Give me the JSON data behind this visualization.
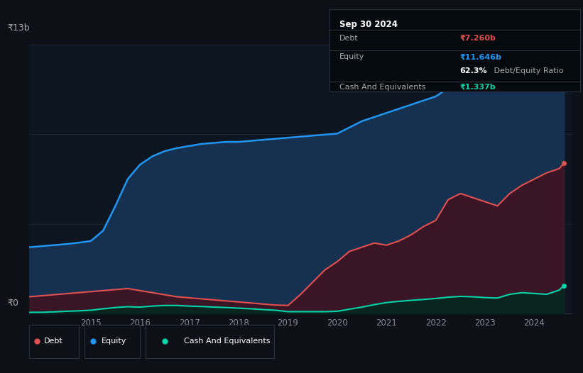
{
  "bg_color": "#0d1117",
  "plot_bg_color": "#0d1520",
  "title": "Sep 30 2024",
  "tooltip": {
    "date": "Sep 30 2024",
    "debt_label": "Debt",
    "debt_value": "₹7.260b",
    "equity_label": "Equity",
    "equity_value": "₹11.646b",
    "ratio_pct": "62.3%",
    "ratio_label": " Debt/Equity Ratio",
    "cash_label": "Cash And Equivalents",
    "cash_value": "₹1.337b"
  },
  "y_label_top": "₹13b",
  "y_label_bottom": "₹0",
  "x_ticks": [
    2015,
    2016,
    2017,
    2018,
    2019,
    2020,
    2021,
    2022,
    2023,
    2024
  ],
  "equity_color": "#2196f3",
  "debt_color": "#e05050",
  "cash_color": "#00d4aa",
  "equity_fill": "#163050",
  "debt_fill": "#3a1525",
  "cash_fill": "#0a2520",
  "years": [
    2013.75,
    2014.0,
    2014.25,
    2014.5,
    2014.75,
    2015.0,
    2015.25,
    2015.5,
    2015.75,
    2016.0,
    2016.25,
    2016.5,
    2016.75,
    2017.0,
    2017.25,
    2017.5,
    2017.75,
    2018.0,
    2018.25,
    2018.5,
    2018.75,
    2019.0,
    2019.25,
    2019.5,
    2019.75,
    2020.0,
    2020.25,
    2020.5,
    2020.75,
    2021.0,
    2021.25,
    2021.5,
    2021.75,
    2022.0,
    2022.25,
    2022.5,
    2022.75,
    2023.0,
    2023.25,
    2023.5,
    2023.75,
    2024.0,
    2024.25,
    2024.5,
    2024.6
  ],
  "equity": [
    3.2,
    3.25,
    3.3,
    3.35,
    3.42,
    3.5,
    4.0,
    5.2,
    6.5,
    7.2,
    7.6,
    7.85,
    8.0,
    8.1,
    8.2,
    8.25,
    8.3,
    8.3,
    8.35,
    8.4,
    8.45,
    8.5,
    8.55,
    8.6,
    8.65,
    8.7,
    9.0,
    9.3,
    9.5,
    9.7,
    9.9,
    10.1,
    10.3,
    10.5,
    10.9,
    11.1,
    11.2,
    11.0,
    10.8,
    11.0,
    11.2,
    11.3,
    11.5,
    11.7,
    11.646
  ],
  "debt": [
    0.8,
    0.85,
    0.9,
    0.95,
    1.0,
    1.05,
    1.1,
    1.15,
    1.2,
    1.1,
    1.0,
    0.9,
    0.8,
    0.75,
    0.7,
    0.65,
    0.6,
    0.55,
    0.5,
    0.45,
    0.4,
    0.38,
    0.9,
    1.5,
    2.1,
    2.5,
    3.0,
    3.2,
    3.4,
    3.3,
    3.5,
    3.8,
    4.2,
    4.5,
    5.5,
    5.8,
    5.6,
    5.4,
    5.2,
    5.8,
    6.2,
    6.5,
    6.8,
    7.0,
    7.26
  ],
  "cash": [
    0.05,
    0.05,
    0.07,
    0.1,
    0.12,
    0.15,
    0.22,
    0.28,
    0.32,
    0.3,
    0.35,
    0.38,
    0.38,
    0.35,
    0.33,
    0.3,
    0.28,
    0.25,
    0.22,
    0.18,
    0.15,
    0.08,
    0.08,
    0.08,
    0.08,
    0.1,
    0.2,
    0.3,
    0.42,
    0.52,
    0.58,
    0.63,
    0.67,
    0.72,
    0.78,
    0.82,
    0.8,
    0.76,
    0.74,
    0.92,
    1.0,
    0.96,
    0.92,
    1.12,
    1.337
  ],
  "ylim": [
    0,
    13
  ],
  "xlim": [
    2013.75,
    2024.75
  ],
  "grid_lines": [
    0,
    4.333,
    8.667,
    13
  ],
  "figsize": [
    8.21,
    5.26
  ],
  "dpi": 100
}
